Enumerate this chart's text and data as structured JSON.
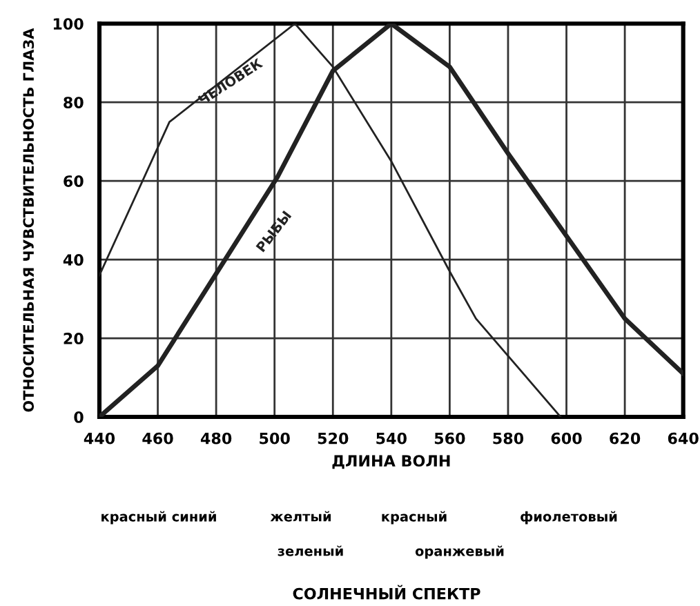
{
  "chart_data": {
    "type": "line",
    "xlabel": "ДЛИНА ВОЛН",
    "ylabel": "ОТНОСИТЕЛЬНАЯ ЧУВСТВИТЕЛЬНОСТЬ ГЛАЗА",
    "series": [
      {
        "name": "ЧЕЛОВЕК",
        "color": "#222222",
        "x": [
          440,
          464,
          507,
          520,
          540,
          560,
          569,
          598
        ],
        "values": [
          36,
          75,
          100,
          89,
          65,
          37,
          25,
          0
        ]
      },
      {
        "name": "РЫБЫ",
        "color": "#222222",
        "x": [
          440,
          460,
          501,
          520,
          540,
          560,
          580,
          600,
          620,
          640
        ],
        "values": [
          0,
          13,
          61,
          88,
          100,
          89,
          67,
          46,
          25,
          11
        ]
      }
    ],
    "xlim": [
      440,
      640
    ],
    "xticks": [
      440,
      460,
      480,
      500,
      520,
      540,
      560,
      580,
      600,
      620,
      640
    ],
    "ylim": [
      0,
      100
    ],
    "yticks": [
      0,
      20,
      40,
      60,
      80,
      100
    ],
    "grid": true,
    "marker": "none",
    "line_style": "solid",
    "annotations": [
      "красный синий",
      "желтый",
      "красный",
      "фиолетовый",
      "зеленый",
      "оранжевый",
      "СОЛНЕЧНЫЙ СПЕКТР"
    ]
  }
}
